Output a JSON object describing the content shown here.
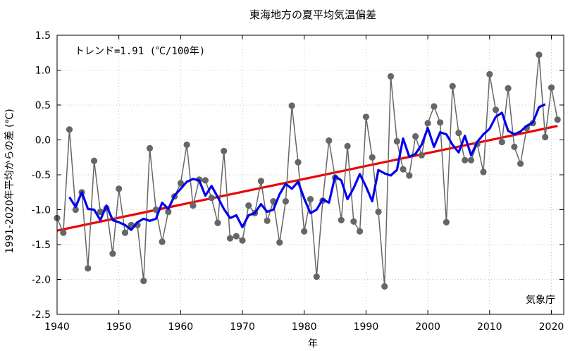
{
  "chart_data": {
    "type": "line",
    "title": "東海地方の夏平均気温偏差",
    "xlabel": "年",
    "ylabel": "1991-2020年平均からの差 (℃)",
    "xlim": [
      1940,
      2022
    ],
    "ylim": [
      -2.5,
      1.5
    ],
    "x_ticks": [
      "1940",
      "1950",
      "1960",
      "1970",
      "1980",
      "1990",
      "2000",
      "2010",
      "2020"
    ],
    "y_ticks": [
      "1.5",
      "1.0",
      "0.5",
      "0.0",
      "-0.5",
      "-1.0",
      "-1.5",
      "-2.0",
      "-2.5"
    ],
    "grid": true,
    "annotation": "トレンド=1.91 (℃/100年)",
    "credit": "気象庁",
    "series": [
      {
        "style": "annual",
        "color": "#666666",
        "x": [
          1940,
          1941,
          1942,
          1943,
          1944,
          1945,
          1946,
          1947,
          1948,
          1949,
          1950,
          1951,
          1952,
          1953,
          1954,
          1955,
          1956,
          1957,
          1958,
          1959,
          1960,
          1961,
          1962,
          1963,
          1964,
          1965,
          1966,
          1967,
          1968,
          1969,
          1970,
          1971,
          1972,
          1973,
          1974,
          1975,
          1976,
          1977,
          1978,
          1979,
          1980,
          1981,
          1982,
          1983,
          1984,
          1985,
          1986,
          1987,
          1988,
          1989,
          1990,
          1991,
          1992,
          1993,
          1994,
          1995,
          1996,
          1997,
          1998,
          1999,
          2000,
          2001,
          2002,
          2003,
          2004,
          2005,
          2006,
          2007,
          2008,
          2009,
          2010,
          2011,
          2012,
          2013,
          2014,
          2015,
          2016,
          2017,
          2018,
          2019,
          2020,
          2021
        ],
        "values": [
          -1.12,
          -1.33,
          0.15,
          -1.0,
          -0.75,
          -1.84,
          -0.3,
          -1.03,
          -0.98,
          -1.63,
          -0.7,
          -1.33,
          -1.22,
          -1.22,
          -2.02,
          -0.12,
          -1.0,
          -1.46,
          -1.03,
          -0.81,
          -0.62,
          -0.07,
          -0.94,
          -0.57,
          -0.58,
          -0.83,
          -1.19,
          -0.16,
          -1.41,
          -1.38,
          -1.44,
          -0.94,
          -1.05,
          -0.59,
          -1.16,
          -0.88,
          -1.47,
          -0.88,
          0.49,
          -0.32,
          -1.31,
          -0.85,
          -1.96,
          -0.87,
          -0.01,
          -0.54,
          -1.15,
          -0.09,
          -1.17,
          -1.31,
          0.33,
          -0.25,
          -1.03,
          -2.1,
          0.91,
          -0.02,
          -0.42,
          -0.51,
          0.05,
          -0.22,
          0.24,
          0.48,
          0.25,
          -1.18,
          0.77,
          0.1,
          -0.29,
          -0.29,
          -0.06,
          -0.46,
          0.94,
          0.43,
          -0.03,
          0.74,
          -0.1,
          -0.34,
          0.17,
          0.24,
          1.22,
          0.04,
          0.75,
          0.29
        ]
      },
      {
        "style": "5-year running mean",
        "color": "#0000ee",
        "x": [
          1942,
          1943,
          1944,
          1945,
          1946,
          1947,
          1948,
          1949,
          1950,
          1951,
          1952,
          1953,
          1954,
          1955,
          1956,
          1957,
          1958,
          1959,
          1960,
          1961,
          1962,
          1963,
          1964,
          1965,
          1966,
          1967,
          1968,
          1969,
          1970,
          1971,
          1972,
          1973,
          1974,
          1975,
          1976,
          1977,
          1978,
          1979,
          1980,
          1981,
          1982,
          1983,
          1984,
          1985,
          1986,
          1987,
          1988,
          1989,
          1990,
          1991,
          1992,
          1993,
          1994,
          1995,
          1996,
          1997,
          1998,
          1999,
          2000,
          2001,
          2002,
          2003,
          2004,
          2005,
          2006,
          2007,
          2008,
          2009,
          2010,
          2011,
          2012,
          2013,
          2014,
          2015,
          2016,
          2017,
          2018,
          2019
        ],
        "values": [
          -0.82,
          -0.96,
          -0.75,
          -0.99,
          -1.0,
          -1.15,
          -0.94,
          -1.15,
          -1.18,
          -1.22,
          -1.29,
          -1.18,
          -1.13,
          -1.16,
          -1.13,
          -0.9,
          -0.99,
          -0.8,
          -0.7,
          -0.6,
          -0.56,
          -0.58,
          -0.8,
          -0.66,
          -0.82,
          -0.99,
          -1.12,
          -1.08,
          -1.25,
          -1.08,
          -1.05,
          -0.92,
          -1.03,
          -1.0,
          -0.78,
          -0.63,
          -0.7,
          -0.6,
          -0.84,
          -1.05,
          -1.0,
          -0.85,
          -0.9,
          -0.52,
          -0.58,
          -0.85,
          -0.69,
          -0.49,
          -0.67,
          -0.88,
          -0.43,
          -0.48,
          -0.51,
          -0.43,
          0.02,
          -0.24,
          -0.2,
          -0.07,
          0.17,
          -0.1,
          0.11,
          0.08,
          -0.07,
          -0.18,
          0.06,
          -0.22,
          -0.03,
          0.08,
          0.16,
          0.33,
          0.39,
          0.13,
          0.08,
          0.12,
          0.2,
          0.25,
          0.47,
          0.51
        ]
      },
      {
        "style": "trend",
        "color": "#ee0000",
        "x": [
          1940,
          2021
        ],
        "values": [
          -1.3,
          0.2
        ]
      }
    ]
  }
}
